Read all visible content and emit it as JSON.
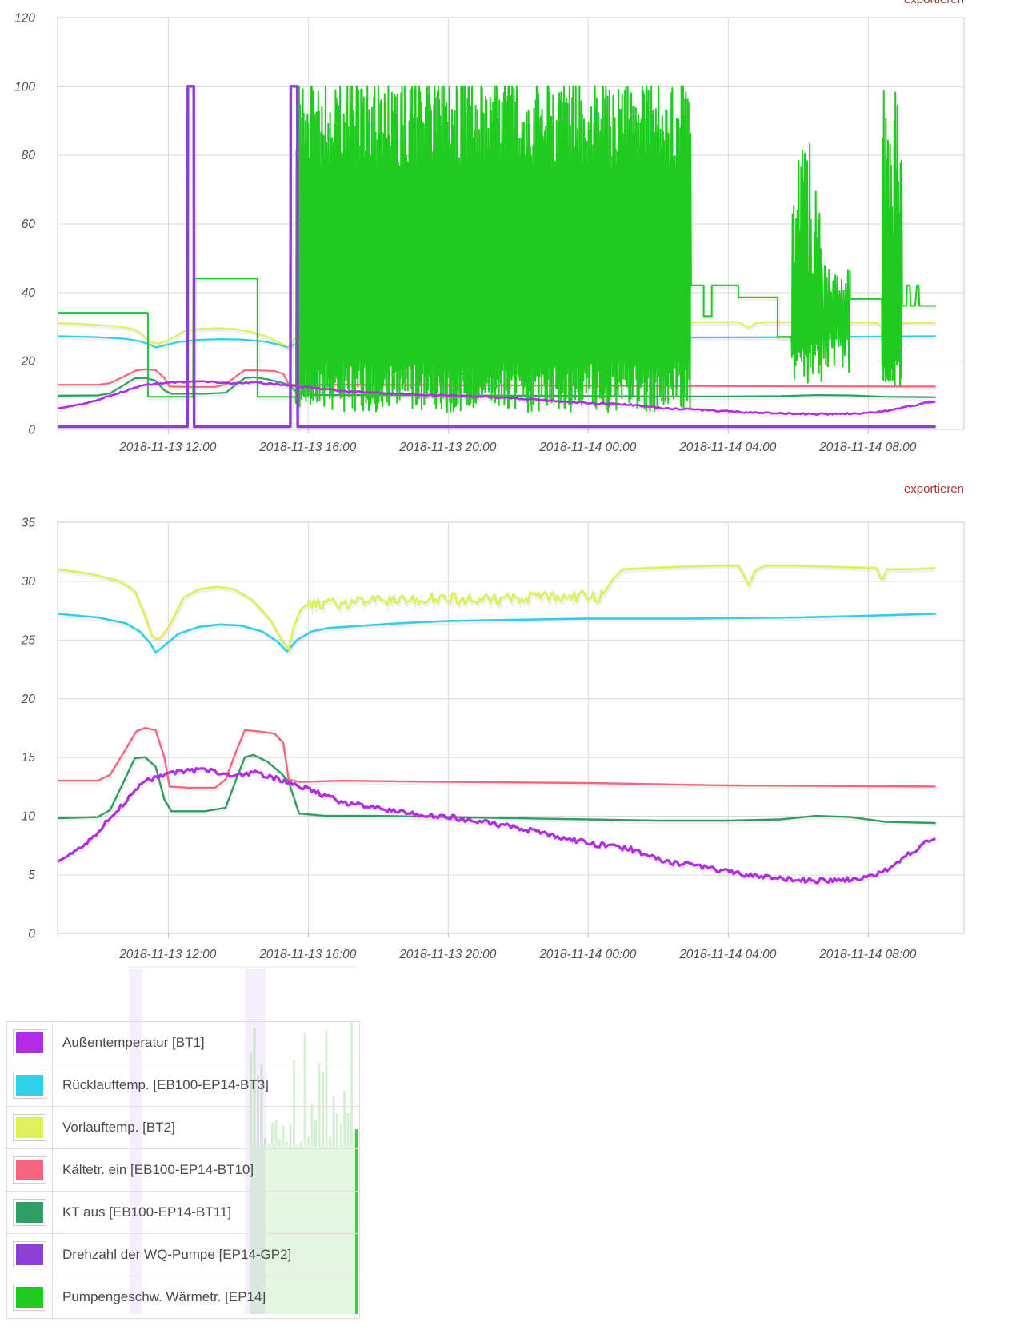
{
  "links": {
    "export_label": "exportieren"
  },
  "legend": {
    "items": [
      {
        "id": "bt1",
        "label": "Außentemperatur [BT1]",
        "color": "#b12ce2"
      },
      {
        "id": "bt3",
        "label": "Rücklauftemp. [EB100-EP14-BT3]",
        "color": "#2fd0e8"
      },
      {
        "id": "bt2",
        "label": "Vorlauftemp. [BT2]",
        "color": "#def05e"
      },
      {
        "id": "bt10",
        "label": "Kältetr. ein [EB100-EP14-BT10]",
        "color": "#f2677f"
      },
      {
        "id": "bt11",
        "label": "KT aus [EB100-EP14-BT11]",
        "color": "#2f9e63"
      },
      {
        "id": "gp2",
        "label": "Drehzahl der WQ-Pumpe [EP14-GP2]",
        "color": "#8d3fd1"
      },
      {
        "id": "ep14",
        "label": "Pumpengeschw. Wärmetr. [EP14]",
        "color": "#1fcb1f"
      }
    ]
  },
  "chart_data": {
    "type": "line",
    "x_unit": "hours since 2018-11-13 00:00",
    "x_ticks": [
      {
        "t": 12,
        "label": "2018-11-13 12:00"
      },
      {
        "t": 16,
        "label": "2018-11-13 16:00"
      },
      {
        "t": 20,
        "label": "2018-11-13 20:00"
      },
      {
        "t": 24,
        "label": "2018-11-14 00:00"
      },
      {
        "t": 28,
        "label": "2018-11-14 04:00"
      },
      {
        "t": 32,
        "label": "2018-11-14 08:00"
      }
    ],
    "charts": [
      {
        "id": "chart-speed",
        "export_label": "exportieren",
        "ylim": [
          0,
          120
        ],
        "y_ticks": [
          0,
          20,
          40,
          60,
          80,
          100,
          120
        ],
        "xlim_hours": [
          8.85,
          34.75
        ],
        "grid": true,
        "legend_position": "none",
        "series_ids": [
          "bt10",
          "bt11",
          "bt3",
          "bt2",
          "ep14",
          "bt1",
          "gp2"
        ]
      },
      {
        "id": "chart-temp",
        "export_label": "exportieren",
        "ylim": [
          0,
          35
        ],
        "y_ticks": [
          0,
          5,
          10,
          15,
          20,
          25,
          30,
          35
        ],
        "xlim_hours": [
          8.85,
          34.75
        ],
        "grid": true,
        "legend_position": "none",
        "series_ids": [
          "bt10",
          "bt11",
          "bt3",
          "bt2",
          "bt1"
        ]
      }
    ],
    "series": {
      "bt1": {
        "name": "Außentemperatur [BT1]",
        "color": "#b12ce2",
        "points": [
          [
            8.85,
            6.1
          ],
          [
            9.5,
            7.2
          ],
          [
            10,
            8.6
          ],
          [
            10.5,
            10.3
          ],
          [
            11,
            12.0
          ],
          [
            11.4,
            13.0
          ],
          [
            12,
            13.6
          ],
          [
            12.6,
            13.8
          ],
          [
            13,
            14.0
          ],
          [
            13.5,
            13.7
          ],
          [
            14,
            13.4
          ],
          [
            14.4,
            13.7
          ],
          [
            15,
            13.3
          ],
          [
            15.5,
            12.9
          ],
          [
            16,
            12.3
          ],
          [
            16.5,
            11.7
          ],
          [
            17,
            11.2
          ],
          [
            17.5,
            10.9
          ],
          [
            18,
            10.6
          ],
          [
            18.5,
            10.4
          ],
          [
            19,
            10.2
          ],
          [
            19.5,
            10.0
          ],
          [
            20,
            9.9
          ],
          [
            21,
            9.5
          ],
          [
            22,
            9.0
          ],
          [
            23,
            8.3
          ],
          [
            24,
            7.7
          ],
          [
            24.6,
            7.4
          ],
          [
            25.2,
            7.2
          ],
          [
            25.6,
            6.7
          ],
          [
            26,
            6.3
          ],
          [
            26.5,
            6.0
          ],
          [
            27,
            5.8
          ],
          [
            27.5,
            5.6
          ],
          [
            28,
            5.2
          ],
          [
            28.5,
            5.0
          ],
          [
            29,
            4.8
          ],
          [
            29.5,
            4.7
          ],
          [
            30,
            4.6
          ],
          [
            30.5,
            4.5
          ],
          [
            31,
            4.5
          ],
          [
            31.5,
            4.6
          ],
          [
            32,
            4.8
          ],
          [
            32.4,
            5.2
          ],
          [
            32.8,
            5.9
          ],
          [
            33.2,
            6.8
          ],
          [
            33.6,
            7.6
          ],
          [
            33.94,
            8.1
          ]
        ],
        "noise": [
          {
            "from": 9.2,
            "to": 33.7,
            "amp": 0.22
          }
        ]
      },
      "bt3": {
        "name": "Rücklauftemp. [EB100-EP14-BT3]",
        "color": "#2fd0e8",
        "points": [
          [
            8.85,
            27.2
          ],
          [
            10,
            26.9
          ],
          [
            10.8,
            26.4
          ],
          [
            11.2,
            25.7
          ],
          [
            11.5,
            24.7
          ],
          [
            11.65,
            23.9
          ],
          [
            11.9,
            24.5
          ],
          [
            12.3,
            25.5
          ],
          [
            12.9,
            26.1
          ],
          [
            13.5,
            26.3
          ],
          [
            14.1,
            26.2
          ],
          [
            14.7,
            25.7
          ],
          [
            15.15,
            24.8
          ],
          [
            15.4,
            24.0
          ],
          [
            15.7,
            25.0
          ],
          [
            16.1,
            25.7
          ],
          [
            16.6,
            26.0
          ],
          [
            17.6,
            26.2
          ],
          [
            18.6,
            26.4
          ],
          [
            20,
            26.6
          ],
          [
            22,
            26.7
          ],
          [
            24,
            26.8
          ],
          [
            27,
            26.8
          ],
          [
            30,
            26.9
          ],
          [
            31.5,
            27.0
          ],
          [
            33.94,
            27.2
          ]
        ]
      },
      "bt2": {
        "name": "Vorlauftemp. [BT2]",
        "color": "#def05e",
        "points": [
          [
            8.85,
            31.0
          ],
          [
            9.8,
            30.6
          ],
          [
            10.6,
            30.0
          ],
          [
            11.05,
            29.2
          ],
          [
            11.35,
            27.0
          ],
          [
            11.55,
            25.3
          ],
          [
            11.75,
            25.0
          ],
          [
            12.05,
            26.2
          ],
          [
            12.45,
            28.6
          ],
          [
            12.9,
            29.3
          ],
          [
            13.4,
            29.5
          ],
          [
            13.9,
            29.3
          ],
          [
            14.4,
            28.4
          ],
          [
            14.9,
            26.8
          ],
          [
            15.25,
            25.0
          ],
          [
            15.45,
            24.2
          ],
          [
            15.6,
            26.2
          ],
          [
            15.8,
            27.6
          ],
          [
            16,
            28.0
          ],
          [
            18,
            28.3
          ],
          [
            20,
            28.5
          ],
          [
            21,
            28.4
          ],
          [
            22.5,
            28.6
          ],
          [
            24.4,
            28.7
          ],
          [
            24.7,
            30.1
          ],
          [
            25,
            31.0
          ],
          [
            25.7,
            31.1
          ],
          [
            26.6,
            31.2
          ],
          [
            27.6,
            31.3
          ],
          [
            28.3,
            31.3
          ],
          [
            28.45,
            30.5
          ],
          [
            28.6,
            29.6
          ],
          [
            28.78,
            30.9
          ],
          [
            29.05,
            31.3
          ],
          [
            30,
            31.3
          ],
          [
            31,
            31.2
          ],
          [
            32.25,
            31.1
          ],
          [
            32.4,
            30.0
          ],
          [
            32.55,
            31.0
          ],
          [
            33.2,
            31.0
          ],
          [
            33.94,
            31.1
          ]
        ],
        "noise": [
          {
            "from": 16,
            "to": 24.4,
            "amp": 0.5
          }
        ]
      },
      "bt10": {
        "name": "Kältetr. ein [EB100-EP14-BT10]",
        "color": "#f2677f",
        "points": [
          [
            8.85,
            13.0
          ],
          [
            10,
            13.0
          ],
          [
            10.35,
            13.5
          ],
          [
            10.8,
            15.7
          ],
          [
            11.1,
            17.2
          ],
          [
            11.35,
            17.5
          ],
          [
            11.65,
            17.3
          ],
          [
            11.9,
            15.0
          ],
          [
            12.05,
            12.5
          ],
          [
            12.6,
            12.4
          ],
          [
            13.35,
            12.4
          ],
          [
            13.65,
            13.1
          ],
          [
            13.95,
            15.5
          ],
          [
            14.2,
            17.3
          ],
          [
            14.6,
            17.2
          ],
          [
            15.05,
            17.0
          ],
          [
            15.3,
            16.2
          ],
          [
            15.45,
            13.1
          ],
          [
            15.75,
            12.9
          ],
          [
            17,
            13.0
          ],
          [
            20,
            12.9
          ],
          [
            24,
            12.8
          ],
          [
            28,
            12.6
          ],
          [
            33.94,
            12.5
          ]
        ]
      },
      "bt11": {
        "name": "KT aus [EB100-EP14-BT11]",
        "color": "#2f9e63",
        "points": [
          [
            8.85,
            9.8
          ],
          [
            10,
            9.9
          ],
          [
            10.35,
            10.5
          ],
          [
            10.8,
            13.3
          ],
          [
            11.05,
            14.9
          ],
          [
            11.35,
            15.0
          ],
          [
            11.65,
            14.2
          ],
          [
            11.9,
            11.4
          ],
          [
            12.1,
            10.4
          ],
          [
            13.05,
            10.4
          ],
          [
            13.65,
            10.7
          ],
          [
            13.95,
            13.1
          ],
          [
            14.2,
            15.0
          ],
          [
            14.45,
            15.2
          ],
          [
            14.85,
            14.6
          ],
          [
            15.25,
            13.6
          ],
          [
            15.45,
            12.9
          ],
          [
            15.75,
            10.2
          ],
          [
            16.5,
            10.0
          ],
          [
            18,
            10.0
          ],
          [
            20,
            9.9
          ],
          [
            22,
            9.8
          ],
          [
            24,
            9.7
          ],
          [
            26,
            9.6
          ],
          [
            28,
            9.6
          ],
          [
            29.5,
            9.7
          ],
          [
            30.5,
            10.0
          ],
          [
            31.5,
            9.9
          ],
          [
            32.5,
            9.5
          ],
          [
            33.94,
            9.4
          ]
        ]
      },
      "gp2": {
        "name": "Drehzahl der WQ-Pumpe [EP14-GP2]",
        "color": "#8d3fd1",
        "points": [
          [
            8.85,
            0.8
          ],
          [
            12.56,
            0.8
          ],
          [
            12.57,
            100
          ],
          [
            12.74,
            100
          ],
          [
            12.75,
            0.8
          ],
          [
            15.5,
            0.8
          ],
          [
            15.51,
            100
          ],
          [
            15.7,
            100
          ],
          [
            15.71,
            0.8
          ],
          [
            33.94,
            0.8
          ]
        ]
      },
      "ep14": {
        "name": "Pumpengeschw. Wärmetr. [EP14]",
        "color": "#1fcb1f",
        "points": [
          [
            8.85,
            34
          ],
          [
            11.43,
            34
          ],
          [
            11.43,
            9.5
          ],
          [
            12.72,
            9.5
          ],
          [
            12.73,
            44
          ],
          [
            14.56,
            44
          ],
          [
            14.56,
            9.5
          ],
          [
            15.65,
            9.5
          ],
          [
            26.95,
            42
          ],
          [
            27.31,
            42
          ],
          [
            27.31,
            33
          ],
          [
            27.54,
            33
          ],
          [
            27.54,
            42
          ],
          [
            28.3,
            42
          ],
          [
            28.3,
            38.5
          ],
          [
            29.42,
            38.5
          ],
          [
            29.42,
            27
          ],
          [
            29.82,
            27
          ],
          [
            30.72,
            30
          ],
          [
            31.49,
            38
          ],
          [
            32.4,
            38
          ],
          [
            32.98,
            36
          ],
          [
            33.1,
            36
          ],
          [
            33.12,
            42
          ],
          [
            33.2,
            42
          ],
          [
            33.22,
            36
          ],
          [
            33.35,
            36
          ],
          [
            33.4,
            42
          ],
          [
            33.45,
            42
          ],
          [
            33.47,
            36
          ],
          [
            33.94,
            36
          ]
        ],
        "bands": [
          {
            "from": 15.66,
            "to": 26.92,
            "dt": 0.026,
            "lowMin": 5,
            "lowMax": 20,
            "highMin": 76,
            "highMax": 103
          },
          {
            "from": 29.83,
            "to": 30.7,
            "dt": 0.035,
            "lowMin": 13,
            "lowMax": 25,
            "highMin": 45,
            "highMax": 85
          },
          {
            "from": 30.74,
            "to": 31.47,
            "dt": 0.06,
            "lowMin": 13,
            "lowMax": 28,
            "highMin": 38,
            "highMax": 48
          },
          {
            "from": 32.41,
            "to": 32.96,
            "dt": 0.03,
            "lowMin": 12,
            "lowMax": 24,
            "highMin": 55,
            "highMax": 102
          }
        ]
      }
    }
  }
}
